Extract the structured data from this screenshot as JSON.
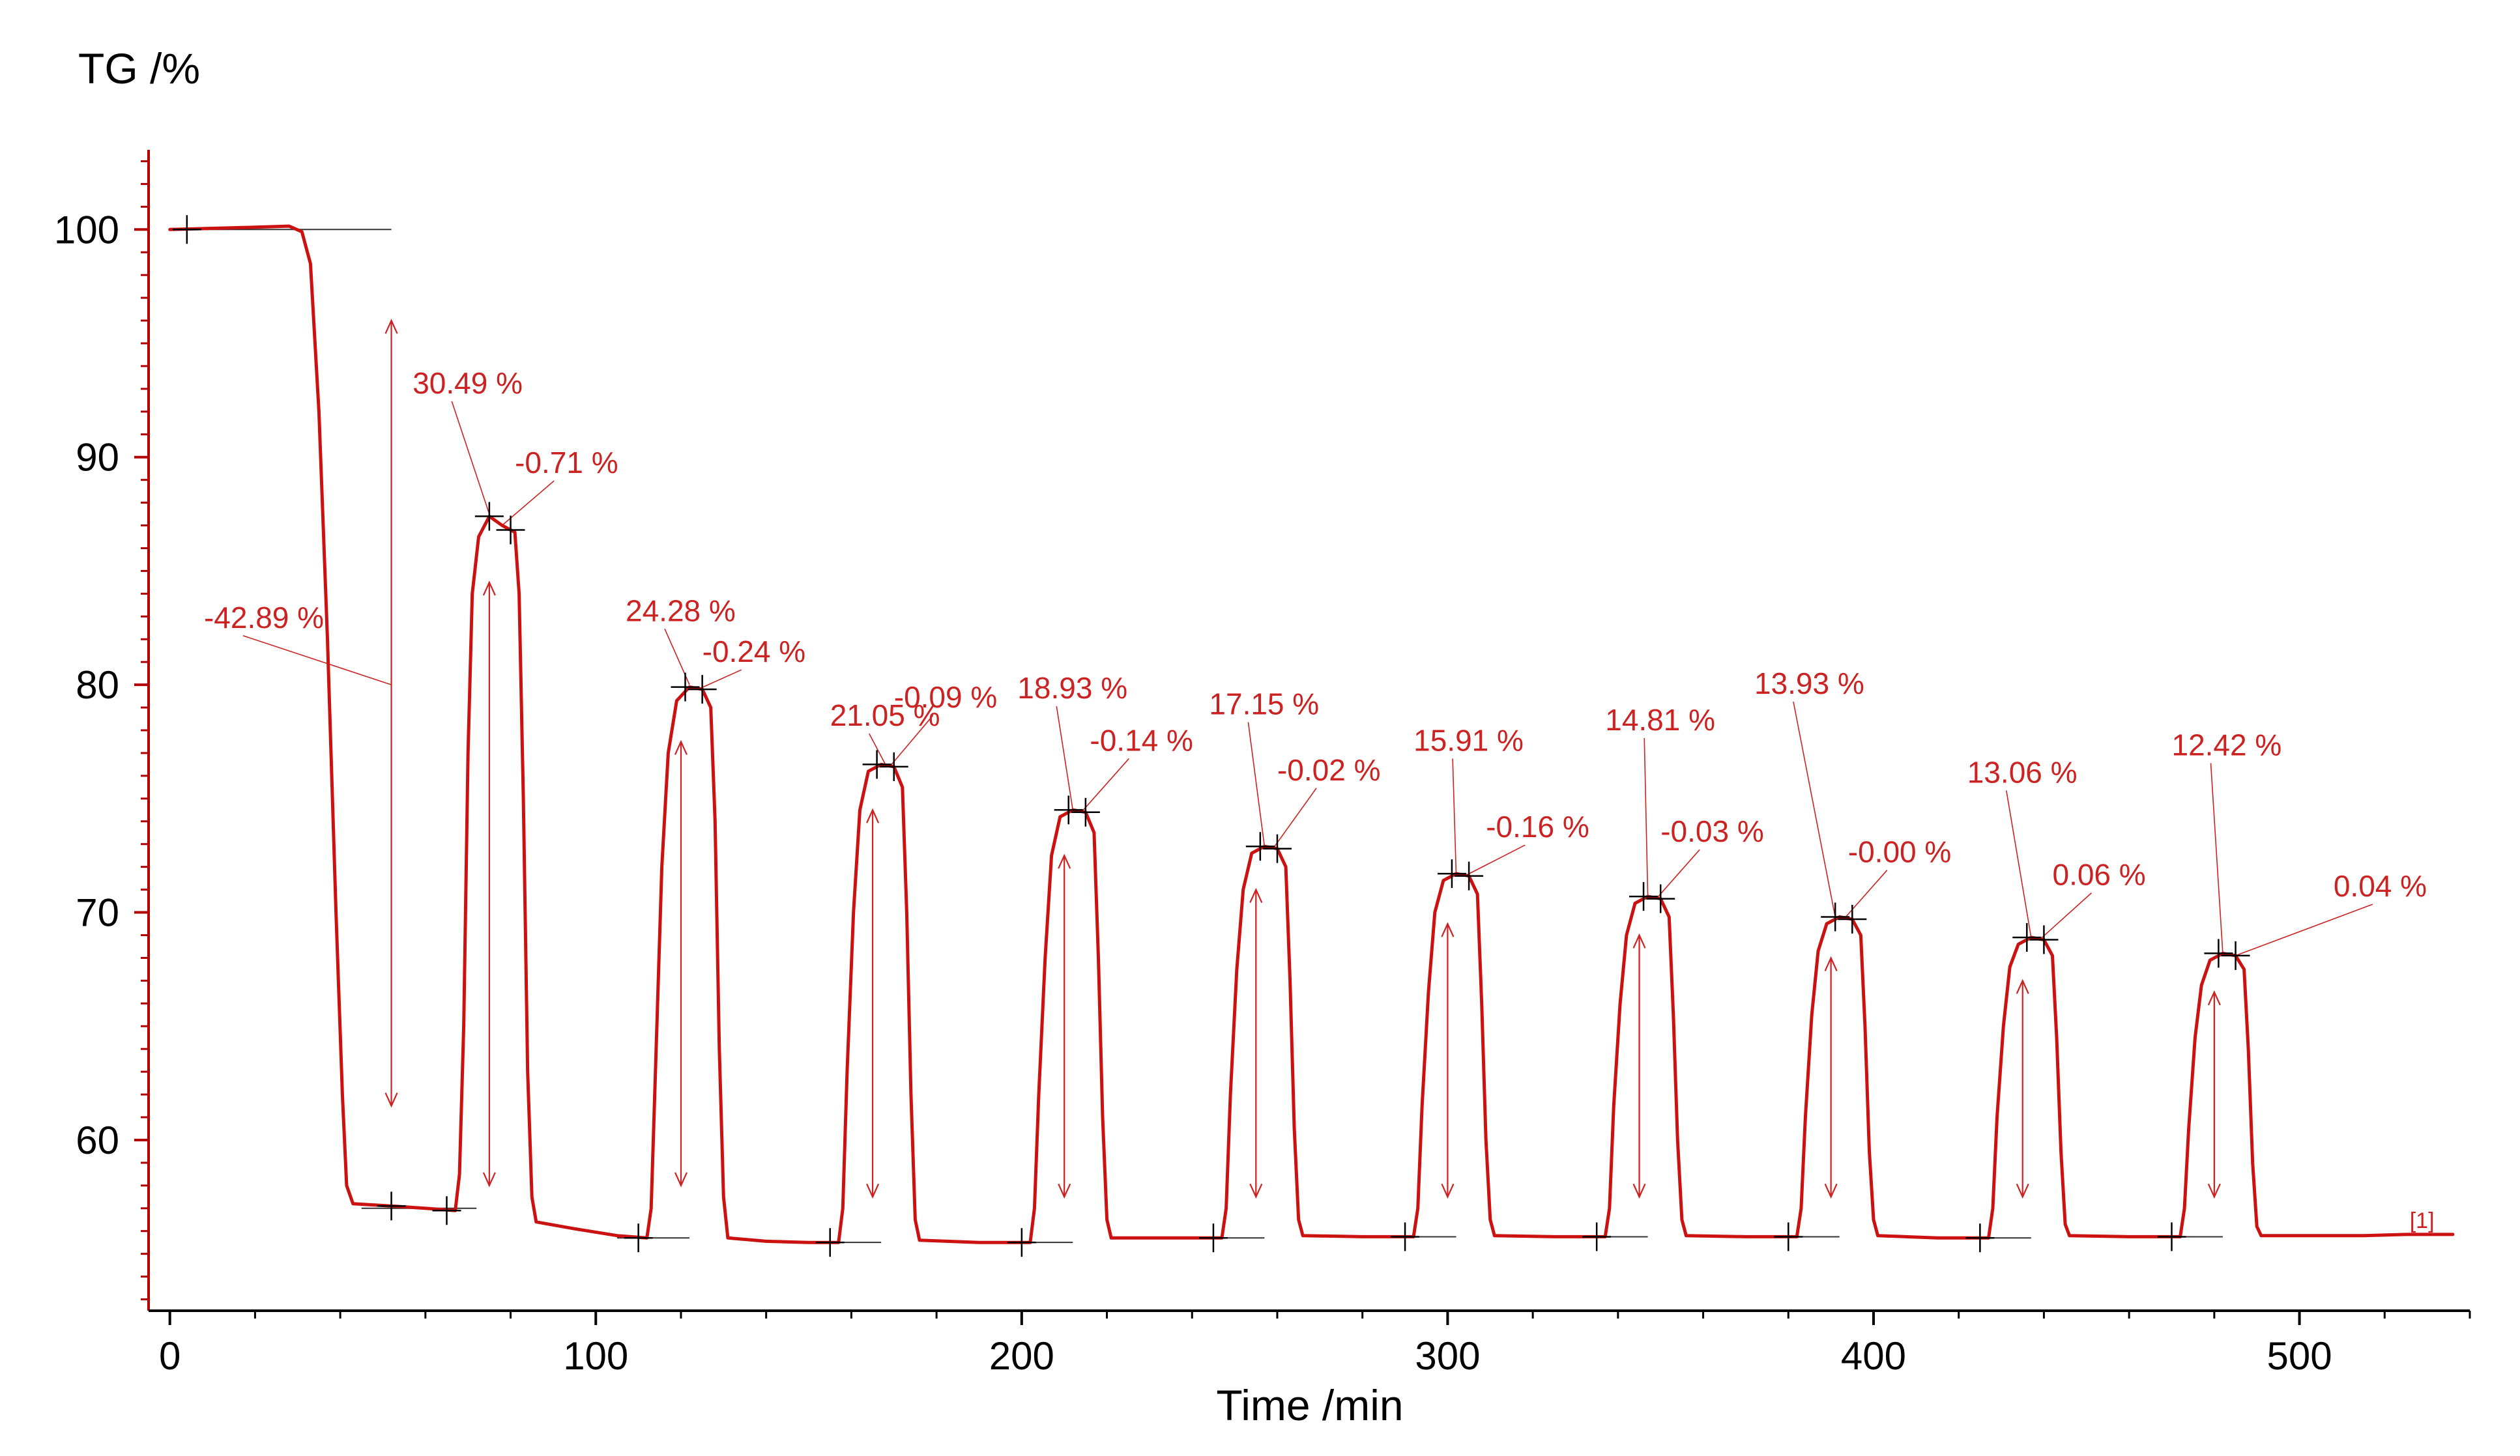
{
  "chart_data": {
    "type": "line",
    "ylabel": "TG /%",
    "xlabel": "Time /min",
    "xlim": [
      -5,
      540
    ],
    "ylim": [
      52.5,
      103.5
    ],
    "xticks": [
      0,
      100,
      200,
      300,
      400,
      500
    ],
    "yticks": [
      60,
      70,
      80,
      90,
      100
    ],
    "xtick_labels": [
      "0",
      "100",
      "200",
      "300",
      "400",
      "500"
    ],
    "ytick_labels": [
      "60",
      "70",
      "80",
      "90",
      "100"
    ],
    "grid": false,
    "colors": {
      "curve": "#cc1111",
      "axis": "#b30000",
      "annotation": "#cc2222",
      "marker": "#000000"
    },
    "series_tag": "[1]",
    "series": [
      {
        "name": "TG",
        "points": [
          [
            0,
            100.0
          ],
          [
            10,
            100.05
          ],
          [
            20,
            100.1
          ],
          [
            28,
            100.15
          ],
          [
            31,
            99.9
          ],
          [
            33,
            98.5
          ],
          [
            35,
            92.0
          ],
          [
            37,
            82.0
          ],
          [
            39,
            70.0
          ],
          [
            40.5,
            62.0
          ],
          [
            41.5,
            58.0
          ],
          [
            43,
            57.2
          ],
          [
            52,
            57.1
          ],
          [
            60,
            57.0
          ],
          [
            67,
            56.9
          ],
          [
            68,
            58.5
          ],
          [
            69,
            65.0
          ],
          [
            70,
            77.0
          ],
          [
            71,
            84.0
          ],
          [
            72.5,
            86.5
          ],
          [
            75,
            87.4
          ],
          [
            78,
            87.0
          ],
          [
            81,
            86.7
          ],
          [
            82,
            84.0
          ],
          [
            83,
            75.0
          ],
          [
            84,
            63.0
          ],
          [
            85,
            57.5
          ],
          [
            86,
            56.4
          ],
          [
            95,
            56.1
          ],
          [
            105,
            55.8
          ],
          [
            112,
            55.7
          ],
          [
            113,
            57.0
          ],
          [
            114,
            63.0
          ],
          [
            115.5,
            72.0
          ],
          [
            117,
            77.0
          ],
          [
            119,
            79.3
          ],
          [
            122,
            79.9
          ],
          [
            125,
            79.8
          ],
          [
            127,
            79.0
          ],
          [
            128,
            74.0
          ],
          [
            129,
            64.0
          ],
          [
            130,
            57.5
          ],
          [
            131,
            55.7
          ],
          [
            140,
            55.55
          ],
          [
            150,
            55.5
          ],
          [
            157,
            55.5
          ],
          [
            158,
            57.0
          ],
          [
            159,
            63.0
          ],
          [
            160.5,
            70.0
          ],
          [
            162,
            74.5
          ],
          [
            164,
            76.2
          ],
          [
            167,
            76.5
          ],
          [
            170,
            76.4
          ],
          [
            172,
            75.5
          ],
          [
            173,
            70.0
          ],
          [
            174,
            62.0
          ],
          [
            175,
            56.5
          ],
          [
            176,
            55.6
          ],
          [
            190,
            55.5
          ],
          [
            202,
            55.5
          ],
          [
            203,
            57.0
          ],
          [
            204,
            62.0
          ],
          [
            205.5,
            68.0
          ],
          [
            207,
            72.5
          ],
          [
            209,
            74.2
          ],
          [
            212,
            74.5
          ],
          [
            215,
            74.4
          ],
          [
            217,
            73.5
          ],
          [
            218,
            68.0
          ],
          [
            219,
            61.0
          ],
          [
            220,
            56.5
          ],
          [
            221,
            55.7
          ],
          [
            235,
            55.7
          ],
          [
            247,
            55.7
          ],
          [
            248,
            57.0
          ],
          [
            249,
            62.0
          ],
          [
            250.5,
            67.5
          ],
          [
            252,
            71.0
          ],
          [
            254,
            72.6
          ],
          [
            257,
            72.9
          ],
          [
            260,
            72.8
          ],
          [
            262,
            72.0
          ],
          [
            263,
            67.0
          ],
          [
            264,
            60.5
          ],
          [
            265,
            56.5
          ],
          [
            266,
            55.8
          ],
          [
            280,
            55.75
          ],
          [
            292,
            55.75
          ],
          [
            293,
            57.0
          ],
          [
            294,
            61.5
          ],
          [
            295.5,
            66.5
          ],
          [
            297,
            70.0
          ],
          [
            299,
            71.4
          ],
          [
            302,
            71.7
          ],
          [
            305,
            71.6
          ],
          [
            307,
            70.8
          ],
          [
            308,
            66.0
          ],
          [
            309,
            60.0
          ],
          [
            310,
            56.5
          ],
          [
            311,
            55.8
          ],
          [
            325,
            55.75
          ],
          [
            337,
            55.75
          ],
          [
            338,
            57.0
          ],
          [
            339,
            61.5
          ],
          [
            340.5,
            66.0
          ],
          [
            342,
            69.0
          ],
          [
            344,
            70.4
          ],
          [
            347,
            70.7
          ],
          [
            350,
            70.6
          ],
          [
            352,
            69.8
          ],
          [
            353,
            65.5
          ],
          [
            354,
            60.0
          ],
          [
            355,
            56.5
          ],
          [
            356,
            55.8
          ],
          [
            370,
            55.75
          ],
          [
            382,
            55.75
          ],
          [
            383,
            57.0
          ],
          [
            384,
            61.0
          ],
          [
            385.5,
            65.5
          ],
          [
            387,
            68.3
          ],
          [
            389,
            69.5
          ],
          [
            392,
            69.8
          ],
          [
            395,
            69.7
          ],
          [
            397,
            69.0
          ],
          [
            398,
            65.0
          ],
          [
            399,
            59.5
          ],
          [
            400,
            56.5
          ],
          [
            401,
            55.8
          ],
          [
            415,
            55.7
          ],
          [
            427,
            55.7
          ],
          [
            428,
            57.0
          ],
          [
            429,
            61.0
          ],
          [
            430.5,
            65.0
          ],
          [
            432,
            67.6
          ],
          [
            434,
            68.6
          ],
          [
            437,
            68.9
          ],
          [
            440,
            68.8
          ],
          [
            442,
            68.1
          ],
          [
            443,
            64.5
          ],
          [
            444,
            59.5
          ],
          [
            445,
            56.3
          ],
          [
            446,
            55.8
          ],
          [
            460,
            55.75
          ],
          [
            472,
            55.75
          ],
          [
            473,
            57.0
          ],
          [
            474,
            60.5
          ],
          [
            475.5,
            64.5
          ],
          [
            477,
            66.8
          ],
          [
            479,
            67.9
          ],
          [
            482,
            68.2
          ],
          [
            485,
            68.1
          ],
          [
            487,
            67.5
          ],
          [
            488,
            64.0
          ],
          [
            489,
            59.0
          ],
          [
            490,
            56.2
          ],
          [
            491,
            55.8
          ],
          [
            505,
            55.8
          ],
          [
            515,
            55.8
          ],
          [
            525,
            55.85
          ],
          [
            536,
            55.85
          ]
        ]
      }
    ],
    "annotations": [
      {
        "label": "-42.89 %",
        "text_at": [
          8,
          82.5
        ],
        "arrow_x": 52,
        "from": 96.0,
        "to": 61.5,
        "leader_to": [
          52,
          80.0
        ]
      },
      {
        "label": "30.49 %",
        "text_at": [
          57,
          92.8
        ],
        "arrow_x": 75,
        "from": 58.0,
        "to": 84.5,
        "leader_to": [
          75,
          87.5
        ]
      },
      {
        "label": "-0.71 %",
        "text_at": [
          81,
          89.3
        ],
        "arrow_x": null,
        "leader_to": [
          78,
          87.0
        ]
      },
      {
        "label": "24.28 %",
        "text_at": [
          107,
          82.8
        ],
        "arrow_x": 120,
        "from": 58.0,
        "to": 77.5,
        "leader_to": [
          122,
          80.0
        ]
      },
      {
        "label": "-0.24 %",
        "text_at": [
          125,
          81.0
        ],
        "arrow_x": null,
        "leader_to": [
          124,
          79.8
        ]
      },
      {
        "label": "21.05 %",
        "text_at": [
          155,
          78.2
        ],
        "arrow_x": 165,
        "from": 57.5,
        "to": 74.5,
        "leader_to": [
          168,
          76.5
        ]
      },
      {
        "label": "-0.09 %",
        "text_at": [
          170,
          79.0
        ],
        "arrow_x": null,
        "leader_to": [
          169,
          76.4
        ]
      },
      {
        "label": "18.93 %",
        "text_at": [
          199,
          79.4
        ],
        "arrow_x": 210,
        "from": 57.5,
        "to": 72.5,
        "leader_to": [
          212,
          74.5
        ]
      },
      {
        "label": "-0.14 %",
        "text_at": [
          216,
          77.1
        ],
        "arrow_x": null,
        "leader_to": [
          214,
          74.4
        ]
      },
      {
        "label": "17.15 %",
        "text_at": [
          244,
          78.7
        ],
        "arrow_x": 255,
        "from": 57.5,
        "to": 71.0,
        "leader_to": [
          257,
          72.9
        ]
      },
      {
        "label": "-0.02 %",
        "text_at": [
          260,
          75.8
        ],
        "arrow_x": null,
        "leader_to": [
          259,
          72.8
        ]
      },
      {
        "label": "15.91 %",
        "text_at": [
          292,
          77.1
        ],
        "arrow_x": 300,
        "from": 57.5,
        "to": 69.5,
        "leader_to": [
          302,
          71.7
        ]
      },
      {
        "label": "-0.16 %",
        "text_at": [
          309,
          73.3
        ],
        "arrow_x": null,
        "leader_to": [
          304,
          71.6
        ]
      },
      {
        "label": "14.81 %",
        "text_at": [
          337,
          78.0
        ],
        "arrow_x": 345,
        "from": 57.5,
        "to": 69.0,
        "leader_to": [
          347,
          70.7
        ]
      },
      {
        "label": "-0.03 %",
        "text_at": [
          350,
          73.1
        ],
        "arrow_x": null,
        "leader_to": [
          349,
          70.6
        ]
      },
      {
        "label": "13.93 %",
        "text_at": [
          372,
          79.6
        ],
        "arrow_x": 390,
        "from": 57.5,
        "to": 68.0,
        "leader_to": [
          391,
          69.8
        ]
      },
      {
        "label": "-0.00 %",
        "text_at": [
          394,
          72.2
        ],
        "arrow_x": null,
        "leader_to": [
          393,
          69.7
        ]
      },
      {
        "label": "13.06 %",
        "text_at": [
          422,
          75.7
        ],
        "arrow_x": 435,
        "from": 57.5,
        "to": 67.0,
        "leader_to": [
          437,
          68.9
        ]
      },
      {
        "label": "0.06 %",
        "text_at": [
          442,
          71.2
        ],
        "arrow_x": null,
        "leader_to": [
          439,
          68.8
        ]
      },
      {
        "label": "12.42 %",
        "text_at": [
          470,
          76.9
        ],
        "arrow_x": 480,
        "from": 57.5,
        "to": 66.5,
        "leader_to": [
          482,
          68.2
        ]
      },
      {
        "label": "0.04 %",
        "text_at": [
          508,
          70.7
        ],
        "arrow_x": null,
        "leader_to": [
          485,
          68.1
        ]
      }
    ],
    "markers": [
      [
        4,
        100.0
      ],
      [
        52,
        57.1
      ],
      [
        65,
        56.9
      ],
      [
        75,
        87.4
      ],
      [
        80,
        86.8
      ],
      [
        110,
        55.7
      ],
      [
        121,
        79.9
      ],
      [
        125,
        79.8
      ],
      [
        155,
        55.5
      ],
      [
        166,
        76.5
      ],
      [
        170,
        76.4
      ],
      [
        200,
        55.5
      ],
      [
        211,
        74.5
      ],
      [
        215,
        74.4
      ],
      [
        245,
        55.7
      ],
      [
        256,
        72.9
      ],
      [
        260,
        72.8
      ],
      [
        290,
        55.75
      ],
      [
        301,
        71.7
      ],
      [
        305,
        71.6
      ],
      [
        335,
        55.75
      ],
      [
        346,
        70.7
      ],
      [
        350,
        70.6
      ],
      [
        380,
        55.75
      ],
      [
        391,
        69.8
      ],
      [
        395,
        69.7
      ],
      [
        425,
        55.7
      ],
      [
        436,
        68.9
      ],
      [
        440,
        68.8
      ],
      [
        470,
        55.75
      ],
      [
        481,
        68.2
      ],
      [
        485,
        68.1
      ]
    ],
    "baselines": [
      [
        0,
        52,
        100.0
      ],
      [
        45,
        72,
        57.0
      ],
      [
        105,
        122,
        55.7
      ],
      [
        150,
        167,
        55.5
      ],
      [
        195,
        212,
        55.5
      ],
      [
        240,
        257,
        55.7
      ],
      [
        285,
        302,
        55.75
      ],
      [
        330,
        347,
        55.75
      ],
      [
        375,
        392,
        55.75
      ],
      [
        420,
        437,
        55.7
      ],
      [
        465,
        482,
        55.75
      ]
    ]
  }
}
